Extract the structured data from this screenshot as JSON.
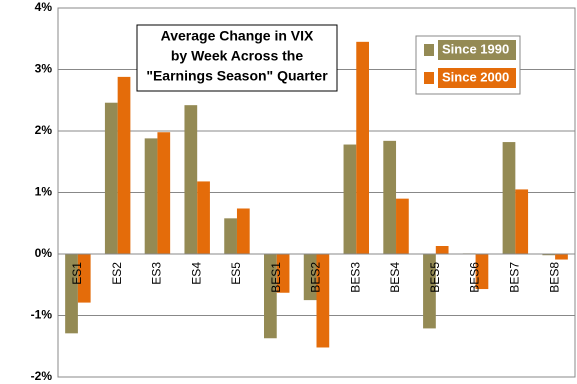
{
  "chart_data": {
    "type": "bar",
    "title": [
      "Average Change in VIX",
      "by Week Across the",
      "\"Earnings Season\" Quarter"
    ],
    "categories": [
      "ES1",
      "ES2",
      "ES3",
      "ES4",
      "ES5",
      "BES1",
      "BES2",
      "BES3",
      "BES4",
      "BES5",
      "BES6",
      "BES7",
      "BES8"
    ],
    "series": [
      {
        "name": "Since 1990",
        "color": "#948A54",
        "values": [
          -1.29,
          2.46,
          1.88,
          2.42,
          0.58,
          -1.37,
          -0.75,
          1.78,
          1.84,
          -1.21,
          0.01,
          1.82,
          -0.02
        ]
      },
      {
        "name": "Since 2000",
        "color": "#E46C0A",
        "values": [
          -0.79,
          2.88,
          1.98,
          1.18,
          0.74,
          -0.63,
          -1.52,
          3.45,
          0.9,
          0.13,
          -0.57,
          1.05,
          -0.09
        ]
      }
    ],
    "ylim": [
      -2,
      4
    ],
    "yticks": [
      {
        "value": -2,
        "label": "-2%"
      },
      {
        "value": -1,
        "label": "-1%"
      },
      {
        "value": 0,
        "label": "0%"
      },
      {
        "value": 1,
        "label": "1%"
      },
      {
        "value": 2,
        "label": "2%"
      },
      {
        "value": 3,
        "label": "3%"
      },
      {
        "value": 4,
        "label": "4%"
      }
    ],
    "grid": true
  }
}
